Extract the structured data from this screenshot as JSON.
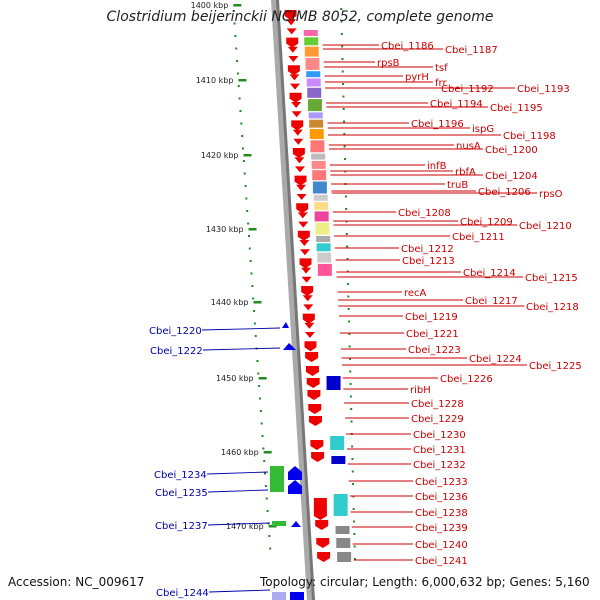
{
  "title": "Clostridium beijerinckii NCIMB 8052, complete genome",
  "accession": "Accession: NC_009617",
  "summary": "Topology: circular; Length: 6,000,632 bp; Genes: 5,160",
  "scale_labels": [
    "1400 kbp",
    "1410 kbp",
    "1420 kbp",
    "1430 kbp",
    "1440 kbp",
    "1450 kbp",
    "1460 kbp",
    "1470 kbp"
  ],
  "colors": {
    "forward_gene": "#ee0000",
    "reverse_gene": "#0000ee",
    "right_label": "#cc0000",
    "left_label": "#0000aa",
    "scale_tick": "#228b22",
    "backbone": "#999999"
  },
  "right_labels": [
    "Cbei_1186",
    "Cbei_1187",
    "rpsB",
    "tsf",
    "pyrH",
    "frr",
    "Cbei_1192",
    "Cbei_1193",
    "Cbei_1194",
    "Cbei_1195",
    "Cbei_1196",
    "ispG",
    "Cbei_1198",
    "nusA",
    "Cbei_1200",
    "infB",
    "rbfA",
    "Cbei_1204",
    "truB",
    "Cbei_1206",
    "rpsO",
    "Cbei_1208",
    "Cbei_1209",
    "Cbei_1210",
    "Cbei_1211",
    "Cbei_1212",
    "Cbei_1213",
    "Cbei_1214",
    "Cbei_1215",
    "recA",
    "Cbei_1217",
    "Cbei_1218",
    "Cbei_1219",
    "Cbei_1221",
    "Cbei_1223",
    "Cbei_1224",
    "Cbei_1225",
    "Cbei_1226",
    "ribH",
    "Cbei_1228",
    "Cbei_1229",
    "Cbei_1230",
    "Cbei_1231",
    "Cbei_1232",
    "Cbei_1233",
    "Cbei_1236",
    "Cbei_1238",
    "Cbei_1239",
    "Cbei_1240",
    "Cbei_1241"
  ],
  "left_labels": [
    "Cbei_1220",
    "Cbei_1222",
    "Cbei_1234",
    "Cbei_1235",
    "Cbei_1237",
    "Cbei_1244"
  ]
}
